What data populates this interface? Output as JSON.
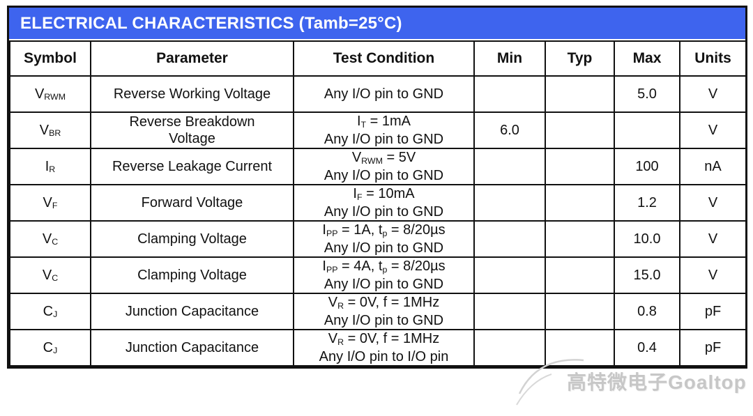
{
  "title": "ELECTRICAL CHARACTERISTICS (Tamb=25°C)",
  "colors": {
    "title_bar_bg": "#3E64EE",
    "title_text": "#FFFFFF",
    "table_border": "#111111",
    "watermark_text": "#C7C7C7"
  },
  "table": {
    "columns": [
      "Symbol",
      "Parameter",
      "Test Condition",
      "Min",
      "Typ",
      "Max",
      "Units"
    ],
    "rows": [
      {
        "symbol": "V_{RWM}",
        "parameter": [
          "Reverse Working Voltage"
        ],
        "condition": [
          "Any I/O pin to GND"
        ],
        "min": "",
        "typ": "",
        "max": "5.0",
        "units": "V"
      },
      {
        "symbol": "V_{BR}",
        "parameter": [
          "Reverse Breakdown",
          "Voltage"
        ],
        "condition": [
          "I_{T} = 1mA",
          "Any I/O pin to GND"
        ],
        "min": "6.0",
        "typ": "",
        "max": "",
        "units": "V"
      },
      {
        "symbol": "I_{R}",
        "parameter": [
          "Reverse Leakage Current"
        ],
        "condition": [
          "V_{RWM} = 5V",
          "Any I/O pin to GND"
        ],
        "min": "",
        "typ": "",
        "max": "100",
        "units": "nA"
      },
      {
        "symbol": "V_{F}",
        "parameter": [
          "Forward Voltage"
        ],
        "condition": [
          "I_{F} = 10mA",
          "Any I/O pin to GND"
        ],
        "min": "",
        "typ": "",
        "max": "1.2",
        "units": "V"
      },
      {
        "symbol": "V_{C}",
        "parameter": [
          "Clamping Voltage"
        ],
        "condition": [
          "I_{PP} = 1A, t_{p} = 8/20µs",
          "Any I/O pin to GND"
        ],
        "min": "",
        "typ": "",
        "max": "10.0",
        "units": "V"
      },
      {
        "symbol": "V_{C}",
        "parameter": [
          "Clamping Voltage"
        ],
        "condition": [
          "I_{PP} = 4A, t_{p} = 8/20µs",
          "Any I/O pin to GND"
        ],
        "min": "",
        "typ": "",
        "max": "15.0",
        "units": "V"
      },
      {
        "symbol": "C_{J}",
        "parameter": [
          "Junction Capacitance"
        ],
        "condition": [
          "V_{R} = 0V, f = 1MHz",
          "Any I/O pin to GND"
        ],
        "min": "",
        "typ": "",
        "max": "0.8",
        "units": "pF"
      },
      {
        "symbol": "C_{J}",
        "parameter": [
          "Junction Capacitance"
        ],
        "condition": [
          "V_{R} = 0V, f = 1MHz",
          "Any I/O pin to I/O pin"
        ],
        "min": "",
        "typ": "",
        "max": "0.4",
        "units": "pF"
      }
    ]
  },
  "watermark": {
    "text": "高特微电子Goaltop"
  }
}
